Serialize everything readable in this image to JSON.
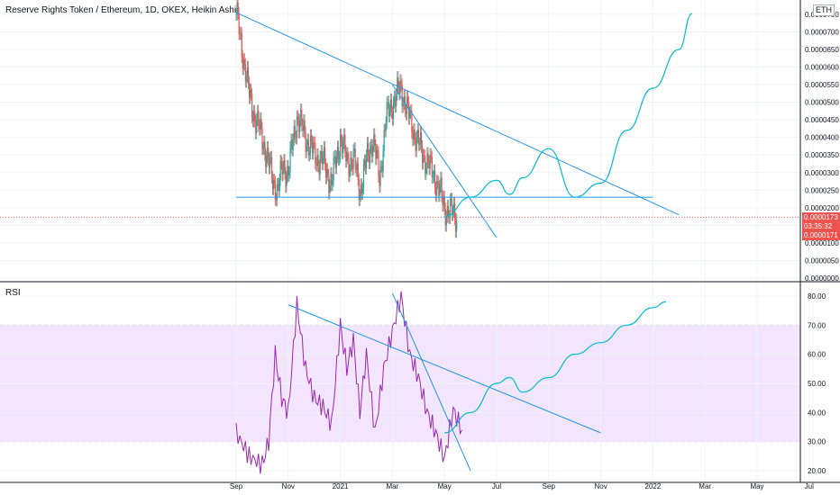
{
  "header": {
    "title": "Reserve Rights Token / Ethereum, 1D, OKEX, Heikin Ashi",
    "currency_badge": "ETH"
  },
  "price_tags": {
    "last_price": "0.0000173",
    "countdown": "03:35:32",
    "low_price": "0.0000171"
  },
  "colors": {
    "up": "#26a69a",
    "down": "#ef5350",
    "trendline": "#2196f3",
    "projection": "#00bcd4",
    "rsi_line": "#9c27b0",
    "rsi_band": "#f3e5fd",
    "price_tag": "#ef5350"
  },
  "chart_data": [
    {
      "type": "candlestick",
      "title": "Reserve Rights Token / Ethereum, 1D, OKEX, Heikin Ashi",
      "y_ticks": [
        "0.0000750",
        "0.0000700",
        "0.0000650",
        "0.0000600",
        "0.0000550",
        "0.0000500",
        "0.0000450",
        "0.0000400",
        "0.0000350",
        "0.0000300",
        "0.0000250",
        "0.0000200",
        "0.0000150",
        "0.0000100",
        "0.0000050",
        "0.0000000"
      ],
      "ylim": [
        0,
        7.6e-05
      ],
      "x_ticks": [
        "Sep",
        "Nov",
        "2021",
        "Mar",
        "May",
        "Jul",
        "Sep",
        "Nov",
        "2022",
        "Mar",
        "May",
        "Jul"
      ],
      "grid": true,
      "price_path": [
        {
          "x": "Sep 2020",
          "y": 7.55e-05
        },
        {
          "x": "Sep 2020",
          "y": 6.4e-05
        },
        {
          "x": "Sep 2020",
          "y": 5.2e-05
        },
        {
          "x": "Sep 2020",
          "y": 4.5e-05
        },
        {
          "x": "Oct 2020",
          "y": 4e-05
        },
        {
          "x": "Oct 2020",
          "y": 3.4e-05
        },
        {
          "x": "Oct 2020",
          "y": 2.8e-05
        },
        {
          "x": "Oct 2020",
          "y": 2.5e-05
        },
        {
          "x": "Oct 2020",
          "y": 3.2e-05
        },
        {
          "x": "Nov 2020",
          "y": 3e-05
        },
        {
          "x": "Nov 2020",
          "y": 4.6e-05
        },
        {
          "x": "Nov 2020",
          "y": 4e-05
        },
        {
          "x": "Dec 2020",
          "y": 3.5e-05
        },
        {
          "x": "Dec 2020",
          "y": 3.3e-05
        },
        {
          "x": "Dec 2020",
          "y": 2.7e-05
        },
        {
          "x": "Jan 2021",
          "y": 4e-05
        },
        {
          "x": "Jan 2021",
          "y": 3.3e-05
        },
        {
          "x": "Jan 2021",
          "y": 3.4e-05
        },
        {
          "x": "Jan 2021",
          "y": 2.5e-05
        },
        {
          "x": "Feb 2021",
          "y": 3.3e-05
        },
        {
          "x": "Feb 2021",
          "y": 4e-05
        },
        {
          "x": "Feb 2021",
          "y": 2.8e-05
        },
        {
          "x": "Feb 2021",
          "y": 4.5e-05
        },
        {
          "x": "Mar 2021",
          "y": 5e-05
        },
        {
          "x": "Mar 2021",
          "y": 5.4e-05
        },
        {
          "x": "Mar 2021",
          "y": 4.5e-05
        },
        {
          "x": "Apr 2021",
          "y": 3.8e-05
        },
        {
          "x": "Apr 2021",
          "y": 3.3e-05
        },
        {
          "x": "Apr 2021",
          "y": 2.8e-05
        },
        {
          "x": "May 2021",
          "y": 2e-05
        },
        {
          "x": "May 2021",
          "y": 1.73e-05
        }
      ],
      "lines": [
        {
          "name": "trendline-descending",
          "from": {
            "x": "Sep 2020",
            "y": 7.55e-05
          },
          "to": {
            "x": "Feb 2022",
            "y": 1.8e-05
          }
        },
        {
          "name": "trendline-steep",
          "from": {
            "x": "Mar 2021",
            "y": 5.5e-05
          },
          "to": {
            "x": "Jul 2021",
            "y": 1.15e-05
          }
        },
        {
          "name": "support-line",
          "y": 2.3e-05,
          "from_x": "Sep 2020",
          "to_x": "Jan 2022"
        }
      ],
      "projection_path": [
        {
          "x": "May 2021",
          "y": 1.75e-05
        },
        {
          "x": "Jun 2021",
          "y": 2.3e-05
        },
        {
          "x": "Jul 2021",
          "y": 2.78e-05
        },
        {
          "x": "Jul 2021",
          "y": 2.38e-05
        },
        {
          "x": "Aug 2021",
          "y": 2.85e-05
        },
        {
          "x": "Sep 2021",
          "y": 3.68e-05
        },
        {
          "x": "Oct 2021",
          "y": 2.3e-05
        },
        {
          "x": "Nov 2021",
          "y": 2.7e-05
        },
        {
          "x": "Dec 2021",
          "y": 4.2e-05
        },
        {
          "x": "Jan 2022",
          "y": 5.4e-05
        },
        {
          "x": "Feb 2022",
          "y": 6.5e-05
        },
        {
          "x": "Feb 2022",
          "y": 7.52e-05
        }
      ]
    },
    {
      "type": "line",
      "title": "RSI",
      "y_ticks": [
        "80.00",
        "70.00",
        "60.00",
        "50.00",
        "40.00",
        "30.00",
        "20.00"
      ],
      "ylim": [
        16,
        84
      ],
      "band": [
        30,
        70
      ],
      "x_ticks": [
        "Sep",
        "Nov",
        "2021",
        "Mar",
        "May",
        "Jul",
        "Sep",
        "Nov",
        "2022",
        "Mar",
        "May",
        "Jul"
      ],
      "series": [
        {
          "values": [
            {
              "x": "Sep 2020",
              "y": 33
            },
            {
              "x": "Sep 2020",
              "y": 25
            },
            {
              "x": "Oct 2020",
              "y": 22
            },
            {
              "x": "Oct 2020",
              "y": 30
            },
            {
              "x": "Oct 2020",
              "y": 60
            },
            {
              "x": "Oct 2020",
              "y": 45
            },
            {
              "x": "Nov 2020",
              "y": 40
            },
            {
              "x": "Nov 2020",
              "y": 77
            },
            {
              "x": "Nov 2020",
              "y": 55
            },
            {
              "x": "Dec 2020",
              "y": 45
            },
            {
              "x": "Dec 2020",
              "y": 42
            },
            {
              "x": "Dec 2020",
              "y": 36
            },
            {
              "x": "Jan 2021",
              "y": 70
            },
            {
              "x": "Jan 2021",
              "y": 55
            },
            {
              "x": "Jan 2021",
              "y": 65
            },
            {
              "x": "Jan 2021",
              "y": 40
            },
            {
              "x": "Feb 2021",
              "y": 60
            },
            {
              "x": "Feb 2021",
              "y": 33
            },
            {
              "x": "Feb 2021",
              "y": 55
            },
            {
              "x": "Mar 2021",
              "y": 68
            },
            {
              "x": "Mar 2021",
              "y": 80
            },
            {
              "x": "Mar 2021",
              "y": 60
            },
            {
              "x": "Apr 2021",
              "y": 52
            },
            {
              "x": "Apr 2021",
              "y": 40
            },
            {
              "x": "Apr 2021",
              "y": 33
            },
            {
              "x": "May 2021",
              "y": 24
            },
            {
              "x": "May 2021",
              "y": 41
            },
            {
              "x": "May 2021",
              "y": 34
            }
          ]
        }
      ],
      "lines": [
        {
          "name": "rsi-trendline-descending",
          "from": {
            "x": "Nov 2020",
            "y": 77
          },
          "to": {
            "x": "Nov 2021",
            "y": 33
          }
        },
        {
          "name": "rsi-trendline-steep",
          "from": {
            "x": "Mar 2021",
            "y": 81
          },
          "to": {
            "x": "Jun 2021",
            "y": 20
          }
        }
      ],
      "projection_path": [
        {
          "x": "May 2021",
          "y": 33
        },
        {
          "x": "Jun 2021",
          "y": 40
        },
        {
          "x": "Jul 2021",
          "y": 50
        },
        {
          "x": "Jul 2021",
          "y": 52
        },
        {
          "x": "Aug 2021",
          "y": 47
        },
        {
          "x": "Sep 2021",
          "y": 52
        },
        {
          "x": "Oct 2021",
          "y": 60
        },
        {
          "x": "Nov 2021",
          "y": 64
        },
        {
          "x": "Dec 2021",
          "y": 70
        },
        {
          "x": "Jan 2022",
          "y": 76
        },
        {
          "x": "Jan 2022",
          "y": 78
        }
      ]
    }
  ]
}
